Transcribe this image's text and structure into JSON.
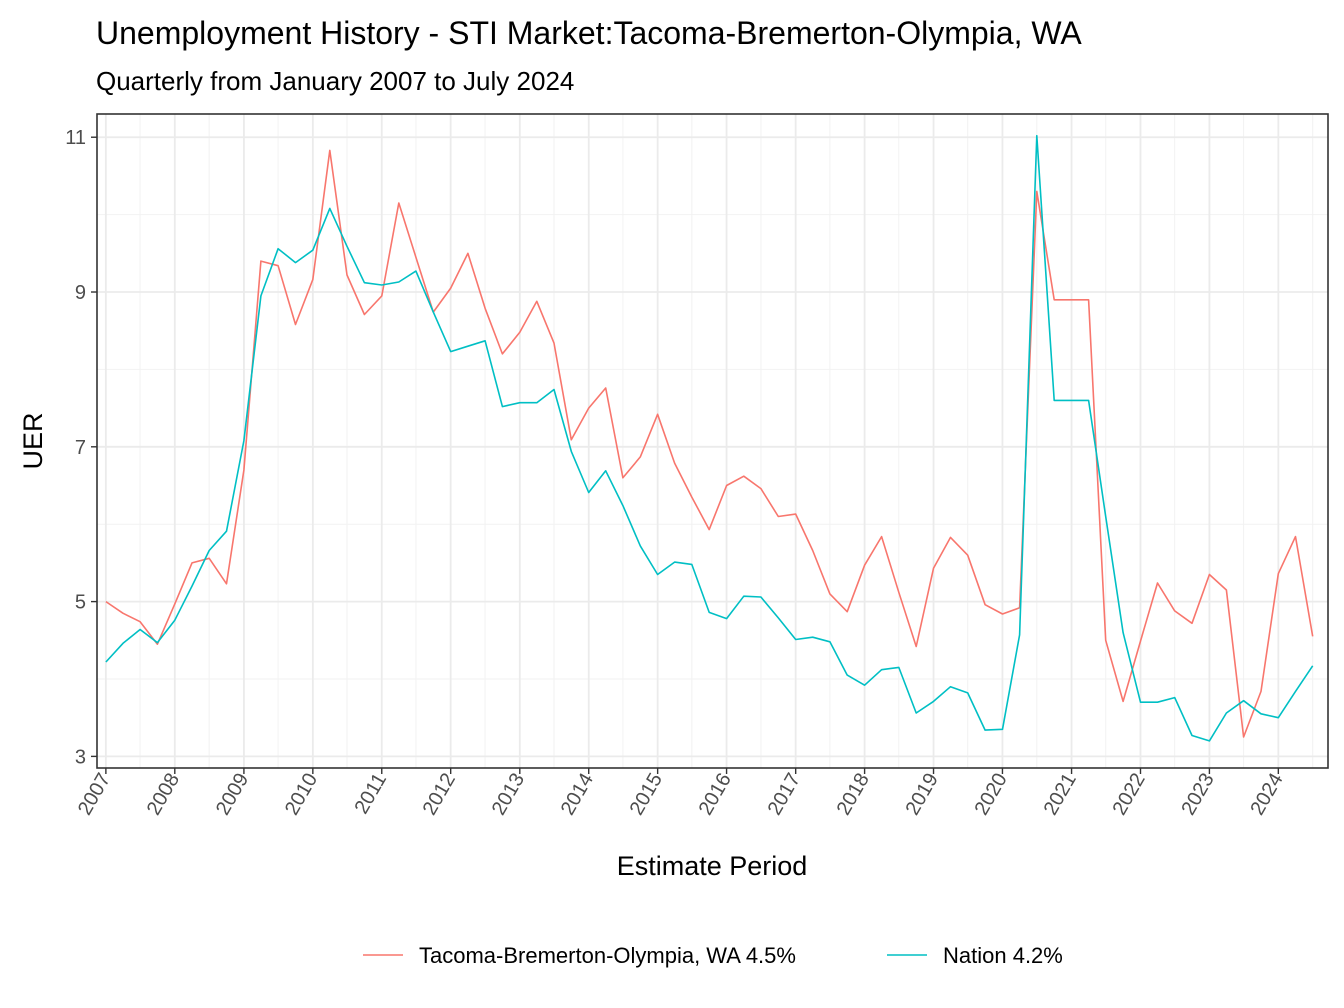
{
  "chart_data": {
    "type": "line",
    "title": "Unemployment History - STI Market:Tacoma-Bremerton-Olympia, WA",
    "subtitle": "Quarterly from January 2007 to July 2024",
    "xlabel": "Estimate Period",
    "ylabel": "UER",
    "xlim": [
      "2006-11-15",
      "2024-09-20"
    ],
    "ylim": [
      2.85,
      11.3
    ],
    "x_ticks": [
      "2007",
      "2008",
      "2009",
      "2010",
      "2011",
      "2012",
      "2013",
      "2014",
      "2015",
      "2016",
      "2017",
      "2018",
      "2019",
      "2020",
      "2021",
      "2022",
      "2023",
      "2024"
    ],
    "y_ticks": [
      3,
      5,
      7,
      9,
      11
    ],
    "grid": true,
    "legend_position": "bottom",
    "x": [
      "2007-01",
      "2007-04",
      "2007-07",
      "2007-10",
      "2008-01",
      "2008-04",
      "2008-07",
      "2008-10",
      "2009-01",
      "2009-04",
      "2009-07",
      "2009-10",
      "2010-01",
      "2010-04",
      "2010-07",
      "2010-10",
      "2011-01",
      "2011-04",
      "2011-07",
      "2011-10",
      "2012-01",
      "2012-04",
      "2012-07",
      "2012-10",
      "2013-01",
      "2013-04",
      "2013-07",
      "2013-10",
      "2014-01",
      "2014-04",
      "2014-07",
      "2014-10",
      "2015-01",
      "2015-04",
      "2015-07",
      "2015-10",
      "2016-01",
      "2016-04",
      "2016-07",
      "2016-10",
      "2017-01",
      "2017-04",
      "2017-07",
      "2017-10",
      "2018-01",
      "2018-04",
      "2018-07",
      "2018-10",
      "2019-01",
      "2019-04",
      "2019-07",
      "2019-10",
      "2020-01",
      "2020-04",
      "2020-07",
      "2020-10",
      "2021-01",
      "2021-04",
      "2021-07",
      "2021-10",
      "2022-01",
      "2022-04",
      "2022-07",
      "2022-10",
      "2023-01",
      "2023-04",
      "2023-07",
      "2023-10",
      "2024-01",
      "2024-04",
      "2024-07"
    ],
    "series": [
      {
        "name": "Tacoma-Bremerton-Olympia, WA 4.5%",
        "color": "#f8766d",
        "values": [
          5.0,
          4.85,
          4.74,
          4.45,
          4.97,
          5.5,
          5.56,
          5.23,
          6.7,
          9.4,
          9.34,
          8.58,
          9.16,
          10.83,
          9.22,
          8.71,
          8.95,
          10.15,
          9.45,
          8.74,
          9.05,
          9.5,
          8.79,
          8.2,
          8.48,
          8.88,
          8.34,
          7.09,
          7.5,
          7.76,
          6.6,
          6.87,
          7.42,
          6.79,
          6.35,
          5.93,
          6.5,
          6.62,
          6.46,
          6.1,
          6.13,
          5.66,
          5.1,
          4.87,
          5.47,
          5.84,
          5.12,
          4.42,
          5.43,
          5.83,
          5.6,
          4.96,
          4.84,
          4.92,
          10.3,
          8.9,
          8.9,
          8.9,
          4.5,
          3.71,
          4.49,
          5.24,
          4.88,
          4.72,
          5.35,
          5.15,
          3.25,
          3.84,
          5.36,
          5.84,
          4.55
        ]
      },
      {
        "name": "Nation 4.2%",
        "color": "#00bfc4",
        "values": [
          4.22,
          4.46,
          4.64,
          4.47,
          4.76,
          5.2,
          5.66,
          5.91,
          7.08,
          8.95,
          9.56,
          9.38,
          9.54,
          10.08,
          9.59,
          9.12,
          9.09,
          9.13,
          9.27,
          8.74,
          8.23,
          8.3,
          8.37,
          7.52,
          7.57,
          7.57,
          7.74,
          6.94,
          6.41,
          6.69,
          6.24,
          5.72,
          5.35,
          5.51,
          5.48,
          4.86,
          4.78,
          5.07,
          5.06,
          4.79,
          4.51,
          4.54,
          4.48,
          4.05,
          3.92,
          4.12,
          4.15,
          3.56,
          3.71,
          3.9,
          3.82,
          3.34,
          3.35,
          4.57,
          11.02,
          7.6,
          7.6,
          7.6,
          6.1,
          4.6,
          3.7,
          3.7,
          3.76,
          3.27,
          3.2,
          3.56,
          3.72,
          3.55,
          3.5,
          3.84,
          4.17
        ]
      }
    ]
  }
}
